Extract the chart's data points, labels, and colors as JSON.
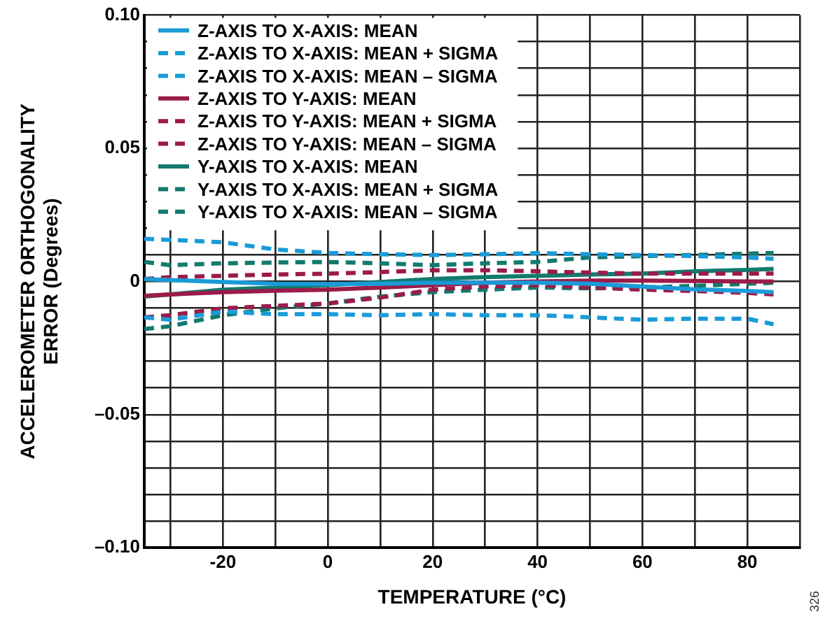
{
  "chart_data": {
    "type": "line",
    "xlabel": "TEMPERATURE (°C)",
    "ylabel": "ACCELEROMETER ORTHOGONALITY\nERROR (Degrees)",
    "x": [
      -35,
      -30,
      -20,
      -10,
      0,
      10,
      20,
      30,
      40,
      50,
      60,
      70,
      80,
      85
    ],
    "xlim": [
      -35,
      90
    ],
    "xticks": [
      {
        "value": -30,
        "label": null
      },
      -20,
      {
        "value": -10,
        "label": null
      },
      0,
      {
        "value": 10,
        "label": null
      },
      20,
      {
        "value": 30,
        "label": null
      },
      40,
      {
        "value": 50,
        "label": null
      },
      60,
      {
        "value": 70,
        "label": null
      },
      80,
      {
        "value": 90,
        "label": null
      }
    ],
    "ylim": [
      -0.1,
      0.1
    ],
    "yticks": [
      {
        "value": -0.1,
        "label": "–0.10"
      },
      {
        "value": -0.09,
        "label": null
      },
      {
        "value": -0.08,
        "label": null
      },
      {
        "value": -0.07,
        "label": null
      },
      {
        "value": -0.06,
        "label": null
      },
      {
        "value": -0.05,
        "label": "–0.05"
      },
      {
        "value": -0.04,
        "label": null
      },
      {
        "value": -0.03,
        "label": null
      },
      {
        "value": -0.02,
        "label": null
      },
      {
        "value": -0.01,
        "label": null
      },
      0,
      {
        "value": 0.01,
        "label": null
      },
      {
        "value": 0.02,
        "label": null
      },
      {
        "value": 0.03,
        "label": null
      },
      {
        "value": 0.04,
        "label": null
      },
      {
        "value": 0.05,
        "label": "0.05"
      },
      {
        "value": 0.06,
        "label": null
      },
      {
        "value": 0.07,
        "label": null
      },
      {
        "value": 0.08,
        "label": null
      },
      {
        "value": 0.09,
        "label": null
      },
      {
        "value": 0.1,
        "label": "0.10"
      }
    ],
    "grid": true,
    "legend": "top left",
    "marker": "none",
    "annotations": [
      "326"
    ],
    "series": [
      {
        "name": "Z-AXIS TO X-AXIS: MEAN",
        "color": "#1a9bd7",
        "line_style": "solid",
        "values": [
          0.0009,
          0.0005,
          -0.0002,
          -0.0009,
          -0.001,
          -0.0009,
          -0.0005,
          -0.0005,
          -0.0005,
          -0.0009,
          -0.0019,
          -0.003,
          -0.0036,
          -0.004
        ]
      },
      {
        "name": "Z-AXIS TO X-AXIS: MEAN + SIGMA",
        "color": "#1a9bd7",
        "line_style": "dashed",
        "values": [
          0.016,
          0.0156,
          0.0147,
          0.012,
          0.0107,
          0.0102,
          0.0099,
          0.0102,
          0.0106,
          0.0102,
          0.0099,
          0.0095,
          0.009,
          0.0085
        ]
      },
      {
        "name": "Z-AXIS TO X-AXIS: MEAN – SIGMA",
        "color": "#1a9bd7",
        "line_style": "dashed",
        "values": [
          -0.0135,
          -0.0144,
          -0.0113,
          -0.0123,
          -0.0123,
          -0.0127,
          -0.0123,
          -0.0127,
          -0.0127,
          -0.0135,
          -0.0144,
          -0.014,
          -0.014,
          -0.0161
        ]
      },
      {
        "name": "Z-AXIS TO Y-AXIS: MEAN",
        "color": "#9b1b4a",
        "line_style": "solid",
        "values": [
          -0.0054,
          -0.0049,
          -0.004,
          -0.0035,
          -0.0031,
          -0.0023,
          -0.0014,
          -0.0005,
          0,
          0.0003,
          0.0003,
          0.0002,
          0,
          0
        ]
      },
      {
        "name": "Z-AXIS TO Y-AXIS: MEAN + SIGMA",
        "color": "#9b1b4a",
        "line_style": "dashed",
        "values": [
          0.0009,
          0.0016,
          0.0021,
          0.0026,
          0.0029,
          0.0035,
          0.0042,
          0.0042,
          0.0038,
          0.0033,
          0.0029,
          0.0029,
          0.0029,
          0.0029
        ]
      },
      {
        "name": "Z-AXIS TO Y-AXIS: MEAN – SIGMA",
        "color": "#9b1b4a",
        "line_style": "dashed",
        "values": [
          -0.0135,
          -0.0127,
          -0.0101,
          -0.0092,
          -0.0083,
          -0.0061,
          -0.0031,
          -0.0019,
          -0.0014,
          -0.0023,
          -0.0031,
          -0.0036,
          -0.0043,
          -0.0049
        ]
      },
      {
        "name": "Y-AXIS TO X-AXIS: MEAN",
        "color": "#127a6e",
        "line_style": "solid",
        "values": [
          -0.0057,
          -0.0049,
          -0.0031,
          -0.0023,
          -0.0014,
          -0.0002,
          0.0009,
          0.0016,
          0.0021,
          0.0026,
          0.0029,
          0.0038,
          0.0043,
          0.0047
        ]
      },
      {
        "name": "Y-AXIS TO X-AXIS: MEAN + SIGMA",
        "color": "#127a6e",
        "line_style": "dashed",
        "values": [
          0.0073,
          0.0061,
          0.0068,
          0.0071,
          0.0073,
          0.0068,
          0.0061,
          0.0068,
          0.0073,
          0.009,
          0.0095,
          0.0099,
          0.0104,
          0.0107
        ]
      },
      {
        "name": "Y-AXIS TO X-AXIS: MEAN – SIGMA",
        "color": "#127a6e",
        "line_style": "dashed",
        "values": [
          -0.0179,
          -0.0168,
          -0.0127,
          -0.0101,
          -0.0083,
          -0.0057,
          -0.004,
          -0.0031,
          -0.0023,
          -0.0026,
          -0.0023,
          -0.0017,
          -0.0009,
          -0.0005
        ]
      }
    ]
  }
}
